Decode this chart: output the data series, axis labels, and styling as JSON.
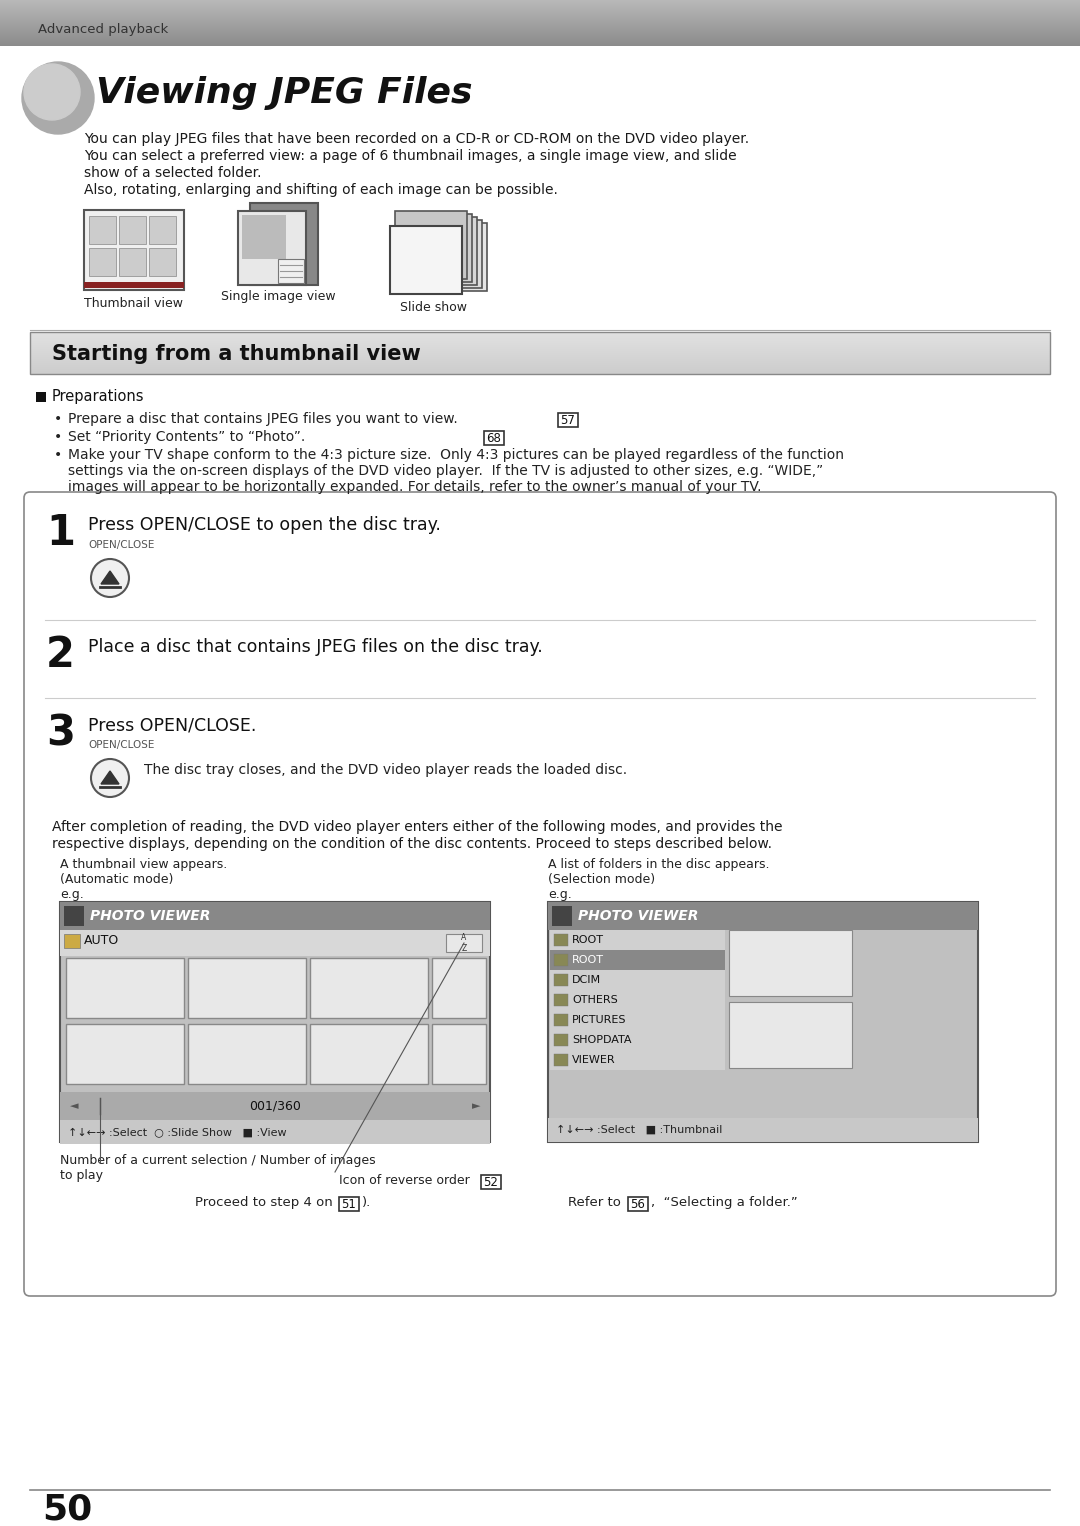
{
  "bg_color": "#ffffff",
  "header_text": "Advanced playback",
  "title": "Viewing JPEG Files",
  "intro_lines": [
    "You can play JPEG files that have been recorded on a CD-R or CD-ROM on the DVD video player.",
    "You can select a preferred view: a page of 6 thumbnail images, a single image view, and slide",
    "show of a selected folder.",
    "Also, rotating, enlarging and shifting of each image can be possible."
  ],
  "view_labels": [
    "Thumbnail view",
    "Single image view",
    "Slide show"
  ],
  "section_title": "Starting from a thumbnail view",
  "prep_title": "Preparations",
  "prep_b1": "Prepare a disc that contains JPEG files you want to view.",
  "prep_b1_ref": "57",
  "prep_b2": "Set “Priority Contents” to “Photo”.",
  "prep_b2_ref": "68",
  "prep_b3a": "Make your TV shape conform to the 4:3 picture size.  Only 4:3 pictures can be played regardless of the function",
  "prep_b3b": "settings via the on-screen displays of the DVD video player.  If the TV is adjusted to other sizes, e.g. “WIDE,”",
  "prep_b3c": "images will appear to be horizontally expanded. For details, refer to the owner’s manual of your TV.",
  "step1_num": "1",
  "step1_text": "Press OPEN/CLOSE to open the disc tray.",
  "step1_label": "OPEN/CLOSE",
  "step2_num": "2",
  "step2_text": "Place a disc that contains JPEG files on the disc tray.",
  "step3_num": "3",
  "step3_text": "Press OPEN/CLOSE.",
  "step3_label": "OPEN/CLOSE",
  "step3_note": "The disc tray closes, and the DVD video player reads the loaded disc.",
  "after_text1": "After completion of reading, the DVD video player enters either of the following modes, and provides the",
  "after_text2": "respective displays, depending on the condition of the disc contents. Proceed to steps described below.",
  "left_cap1": "A thumbnail view appears.",
  "left_cap2": "(Automatic mode)",
  "left_cap3": "e.g.",
  "right_cap1": "A list of folders in the disc appears.",
  "right_cap2": "(Selection mode)",
  "right_cap3": "e.g.",
  "icon_reverse_label": "Icon of reverse order",
  "num_label1": "Number of a current selection / Number of images",
  "num_label2": "to play",
  "proceed_text": "Proceed to step 4 on",
  "proceed_ref": "51",
  "refer_text": "Refer to",
  "refer_ref": "56",
  "refer_suffix": ",  “Selecting a folder.”",
  "page_num": "50",
  "folder_names": [
    "ROOT",
    "ROOT",
    "DCIM",
    "OTHERS",
    "PICTURES",
    "SHOPDATA",
    "VIEWER"
  ]
}
